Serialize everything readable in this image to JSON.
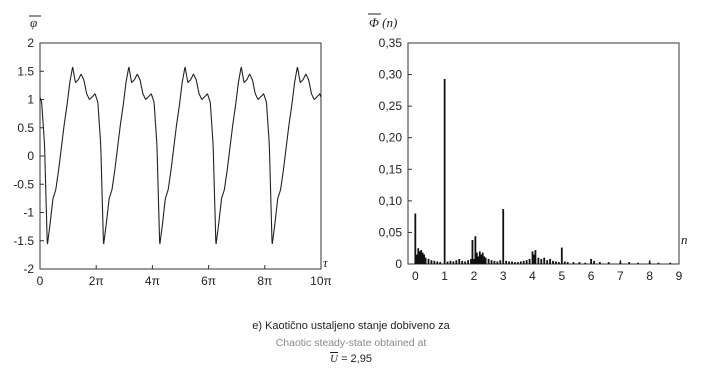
{
  "chart_data": [
    {
      "type": "line",
      "ylabel": "φ",
      "xlabel": "τ",
      "xlim": [
        0,
        31.416
      ],
      "ylim": [
        -2,
        2
      ],
      "x_tick_labels": [
        "0",
        "2π",
        "4π",
        "6π",
        "8π",
        "10π"
      ],
      "x_tick_values": [
        0,
        6.283,
        12.566,
        18.85,
        25.133,
        31.416
      ],
      "y_tick_labels": [
        "2",
        "1.5",
        "1",
        "0.5",
        "0",
        "-0.5",
        "-1",
        "-1.5",
        "-2"
      ],
      "y_tick_values": [
        2,
        1.5,
        1,
        0.5,
        0,
        -0.5,
        -1,
        -1.5,
        -2
      ],
      "period": 6.283,
      "x": [
        0.0,
        0.31,
        0.63,
        0.94,
        1.26,
        1.57,
        1.88,
        2.2,
        2.51,
        2.83,
        3.14,
        3.46,
        3.77,
        4.08,
        4.4,
        4.71,
        5.03,
        5.34,
        5.65,
        5.97,
        6.28
      ],
      "y": [
        -1.58,
        -1.2,
        -0.75,
        -0.6,
        -0.25,
        0.15,
        0.55,
        0.9,
        1.3,
        1.58,
        1.3,
        1.35,
        1.45,
        1.35,
        1.1,
        1.0,
        1.05,
        1.1,
        0.95,
        0.2,
        -1.58
      ],
      "phase_offset": 0.82
    },
    {
      "type": "bar",
      "ylabel": "Φ (n)",
      "xlabel": "n",
      "xlim": [
        -0.25,
        9
      ],
      "ylim": [
        0,
        0.35
      ],
      "x_tick_labels": [
        "0",
        "1",
        "2",
        "3",
        "4",
        "5",
        "6",
        "7",
        "8",
        "9"
      ],
      "x_tick_values": [
        0,
        1,
        2,
        3,
        4,
        5,
        6,
        7,
        8,
        9
      ],
      "y_tick_labels": [
        "0,35",
        "0,30",
        "0,25",
        "0,20",
        "0,15",
        "0,10",
        "0,05",
        "0"
      ],
      "y_tick_values": [
        0.35,
        0.3,
        0.25,
        0.2,
        0.15,
        0.1,
        0.05,
        0
      ],
      "x": [
        0.0,
        0.05,
        0.1,
        0.15,
        0.2,
        0.25,
        0.3,
        0.35,
        0.45,
        0.55,
        0.65,
        0.75,
        0.85,
        1.0,
        1.1,
        1.2,
        1.3,
        1.4,
        1.5,
        1.6,
        1.7,
        1.8,
        1.9,
        1.95,
        2.0,
        2.05,
        2.1,
        2.15,
        2.2,
        2.25,
        2.3,
        2.35,
        2.4,
        2.5,
        2.6,
        2.7,
        2.8,
        2.9,
        3.0,
        3.1,
        3.2,
        3.3,
        3.4,
        3.5,
        3.6,
        3.7,
        3.8,
        3.9,
        4.0,
        4.05,
        4.1,
        4.2,
        4.3,
        4.4,
        4.5,
        4.6,
        4.7,
        4.8,
        4.9,
        5.0,
        5.1,
        5.2,
        5.4,
        5.6,
        5.8,
        6.0,
        6.1,
        6.3,
        6.6,
        7.0,
        7.3,
        7.6,
        8.0,
        8.3,
        8.7
      ],
      "values": [
        0.08,
        0.015,
        0.025,
        0.02,
        0.022,
        0.018,
        0.015,
        0.01,
        0.008,
        0.006,
        0.005,
        0.004,
        0.003,
        0.293,
        0.004,
        0.005,
        0.004,
        0.006,
        0.008,
        0.005,
        0.004,
        0.006,
        0.008,
        0.038,
        0.008,
        0.044,
        0.018,
        0.012,
        0.02,
        0.015,
        0.018,
        0.012,
        0.01,
        0.008,
        0.006,
        0.005,
        0.004,
        0.006,
        0.087,
        0.005,
        0.004,
        0.004,
        0.003,
        0.003,
        0.004,
        0.005,
        0.006,
        0.008,
        0.02,
        0.015,
        0.022,
        0.01,
        0.008,
        0.01,
        0.006,
        0.008,
        0.005,
        0.004,
        0.003,
        0.026,
        0.004,
        0.003,
        0.003,
        0.003,
        0.002,
        0.008,
        0.005,
        0.003,
        0.003,
        0.004,
        0.003,
        0.002,
        0.004,
        0.002,
        0.002
      ]
    }
  ],
  "caption": {
    "line1": "e) Kaotično ustaljeno stanje dobiveno za",
    "line2": "Chaotic steady-state obtained at",
    "line3_var": "U",
    "line3_val": "= 2,95"
  },
  "colors": {
    "line": "#222222",
    "bars": "#111111",
    "axes": "#333333"
  }
}
